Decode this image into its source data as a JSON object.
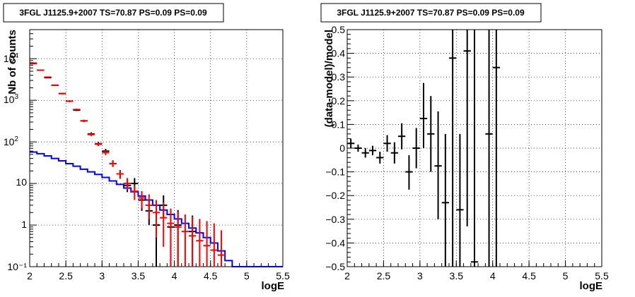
{
  "chart_data": [
    {
      "type": "line",
      "title": "3FGL J1125.9+2007 TS=70.87 PS=0.09 PS=0.09",
      "xlabel": "logE",
      "ylabel": "Nb of counts",
      "xlim": [
        2,
        5.5
      ],
      "ylim": [
        0.1,
        50000
      ],
      "yscale": "log",
      "grid": true,
      "x_ticks": [
        "2",
        "2.5",
        "3",
        "3.5",
        "4",
        "4.5",
        "5",
        "5.5"
      ],
      "y_ticks": [
        "10",
        "1",
        "10⁻¹"
      ],
      "y_ticks_pow": [
        "10",
        "10",
        "10",
        "10"
      ],
      "y_ticks_exp": [
        "1",
        "2",
        "3",
        "4"
      ],
      "colors": {
        "data": "#000000",
        "model_total": "#ff0000",
        "model_source": "#0000ff"
      },
      "series": [
        {
          "style": "points",
          "color": "#000000",
          "points": [
            {
              "x": 2.05,
              "y": 7800,
              "lo": 7600,
              "hi": 8000
            },
            {
              "x": 2.15,
              "y": 5300,
              "lo": 5150,
              "hi": 5450
            },
            {
              "x": 2.25,
              "y": 3500,
              "lo": 3400,
              "hi": 3600
            },
            {
              "x": 2.35,
              "y": 2300,
              "lo": 2220,
              "hi": 2380
            },
            {
              "x": 2.45,
              "y": 1450,
              "lo": 1390,
              "hi": 1510
            },
            {
              "x": 2.55,
              "y": 950,
              "lo": 905,
              "hi": 995
            },
            {
              "x": 2.65,
              "y": 580,
              "lo": 550,
              "hi": 610
            },
            {
              "x": 2.75,
              "y": 320,
              "lo": 300,
              "hi": 340
            },
            {
              "x": 2.85,
              "y": 155,
              "lo": 140,
              "hi": 170
            },
            {
              "x": 2.95,
              "y": 90,
              "lo": 81,
              "hi": 100
            },
            {
              "x": 3.05,
              "y": 60,
              "lo": 52,
              "hi": 68
            },
            {
              "x": 3.15,
              "y": 30,
              "lo": 25,
              "hi": 36
            },
            {
              "x": 3.25,
              "y": 17,
              "lo": 13,
              "hi": 21
            },
            {
              "x": 3.35,
              "y": 9,
              "lo": 6.2,
              "hi": 12.5
            },
            {
              "x": 3.45,
              "y": 10,
              "lo": 7,
              "hi": 13.5
            },
            {
              "x": 3.55,
              "y": 4,
              "lo": 2.2,
              "hi": 6.5
            },
            {
              "x": 3.65,
              "y": 2.2,
              "lo": 1,
              "hi": 4
            },
            {
              "x": 3.75,
              "y": 1,
              "lo": 0.1,
              "hi": 2.4
            },
            {
              "x": 3.85,
              "y": 3,
              "lo": 1.5,
              "hi": 5.2
            },
            {
              "x": 3.95,
              "y": 0.9,
              "lo": 0.1,
              "hi": 2.2
            },
            {
              "x": 4.05,
              "y": 1,
              "lo": 0.1,
              "hi": 2.3
            },
            {
              "x": 4.25,
              "y": 0.7,
              "lo": 0.1,
              "hi": 1.7
            }
          ]
        },
        {
          "style": "points",
          "color": "#ff0000",
          "points": [
            {
              "x": 2.05,
              "y": 7600,
              "lo": 7400,
              "hi": 7800
            },
            {
              "x": 2.15,
              "y": 5300,
              "lo": 5150,
              "hi": 5450
            },
            {
              "x": 2.25,
              "y": 3600,
              "lo": 3500,
              "hi": 3700
            },
            {
              "x": 2.35,
              "y": 2300,
              "lo": 2220,
              "hi": 2380
            },
            {
              "x": 2.45,
              "y": 1450,
              "lo": 1390,
              "hi": 1510
            },
            {
              "x": 2.55,
              "y": 950,
              "lo": 905,
              "hi": 995
            },
            {
              "x": 2.65,
              "y": 600,
              "lo": 570,
              "hi": 630
            },
            {
              "x": 2.75,
              "y": 320,
              "lo": 300,
              "hi": 340
            },
            {
              "x": 2.85,
              "y": 150,
              "lo": 138,
              "hi": 163
            },
            {
              "x": 2.95,
              "y": 88,
              "lo": 79,
              "hi": 97
            },
            {
              "x": 3.05,
              "y": 55,
              "lo": 48,
              "hi": 62
            },
            {
              "x": 3.15,
              "y": 30,
              "lo": 25,
              "hi": 36
            },
            {
              "x": 3.25,
              "y": 17,
              "lo": 13,
              "hi": 21
            },
            {
              "x": 3.35,
              "y": 10,
              "lo": 6.9,
              "hi": 13.5
            },
            {
              "x": 3.45,
              "y": 6.5,
              "lo": 4,
              "hi": 9
            },
            {
              "x": 3.55,
              "y": 4.5,
              "lo": 2.5,
              "hi": 6.5
            },
            {
              "x": 3.65,
              "y": 3,
              "lo": 1.4,
              "hi": 5.5
            },
            {
              "x": 3.75,
              "y": 2,
              "lo": 0.5,
              "hi": 4
            },
            {
              "x": 3.85,
              "y": 1.5,
              "lo": 0.3,
              "hi": 3.5
            },
            {
              "x": 3.95,
              "y": 1.1,
              "lo": 0.1,
              "hi": 2.5
            },
            {
              "x": 4.05,
              "y": 0.9,
              "lo": 0.1,
              "hi": 2.1
            },
            {
              "x": 4.15,
              "y": 0.7,
              "lo": 0.1,
              "hi": 1.8
            },
            {
              "x": 4.25,
              "y": 0.55,
              "lo": 0.1,
              "hi": 1.6
            },
            {
              "x": 4.35,
              "y": 0.42,
              "lo": 0.1,
              "hi": 1.4
            },
            {
              "x": 4.45,
              "y": 0.32,
              "lo": 0.1,
              "hi": 1.25
            },
            {
              "x": 4.55,
              "y": 0.25,
              "lo": 0.1,
              "hi": 1.1
            },
            {
              "x": 4.65,
              "y": 0.19,
              "lo": 0.1,
              "hi": 0.75
            }
          ]
        },
        {
          "style": "step",
          "color": "#0000ff",
          "edges": [
            2.0,
            2.1,
            2.2,
            2.3,
            2.4,
            2.5,
            2.6,
            2.7,
            2.8,
            2.9,
            3.0,
            3.1,
            3.2,
            3.3,
            3.4,
            3.5,
            3.6,
            3.7,
            3.8,
            3.9,
            4.0,
            4.1,
            4.2,
            4.3,
            4.4,
            4.5,
            4.6,
            4.7,
            4.8,
            4.9,
            5.0,
            5.1,
            5.2,
            5.3,
            5.4,
            5.5
          ],
          "values": [
            57,
            52,
            46,
            40,
            35,
            30,
            26,
            22,
            19,
            16.5,
            14,
            11.5,
            9.5,
            7.8,
            6.3,
            5,
            4,
            3,
            2.3,
            1.8,
            1.4,
            1.1,
            0.85,
            0.65,
            0.5,
            0.37,
            0.24,
            0.14,
            0.1,
            0.1,
            0.1,
            0.1,
            0.1,
            0.1,
            0.1
          ]
        }
      ]
    },
    {
      "type": "scatter",
      "title": "3FGL J1125.9+2007 TS=70.87 PS=0.09 PS=0.09",
      "xlabel": "logE",
      "ylabel": "(data-model)/model",
      "xlim": [
        2,
        5.5
      ],
      "ylim": [
        -0.5,
        0.5
      ],
      "grid": true,
      "x_ticks": [
        "2",
        "2.5",
        "3",
        "3.5",
        "4",
        "4.5",
        "5",
        "5.5"
      ],
      "y_ticks": [
        "−0.5",
        "−0.4",
        "−0.3",
        "−0.2",
        "−0.1",
        "0",
        "0.1",
        "0.2",
        "0.3",
        "0.4",
        "0.5"
      ],
      "series": [
        {
          "style": "points",
          "color": "#000000",
          "points": [
            {
              "x": 2.05,
              "y": 0.02,
              "lo": 0.0,
              "hi": 0.04
            },
            {
              "x": 2.15,
              "y": 0.0,
              "lo": -0.015,
              "hi": 0.015
            },
            {
              "x": 2.25,
              "y": -0.02,
              "lo": -0.04,
              "hi": 0.0
            },
            {
              "x": 2.35,
              "y": -0.01,
              "lo": -0.03,
              "hi": 0.01
            },
            {
              "x": 2.45,
              "y": -0.04,
              "lo": -0.065,
              "hi": -0.015
            },
            {
              "x": 2.55,
              "y": 0.02,
              "lo": -0.015,
              "hi": 0.055
            },
            {
              "x": 2.65,
              "y": -0.02,
              "lo": -0.065,
              "hi": 0.025
            },
            {
              "x": 2.75,
              "y": 0.05,
              "lo": -0.005,
              "hi": 0.105
            },
            {
              "x": 2.85,
              "y": -0.1,
              "lo": -0.175,
              "hi": -0.03
            },
            {
              "x": 2.95,
              "y": 0.0,
              "lo": -0.085,
              "hi": 0.085
            },
            {
              "x": 3.05,
              "y": 0.125,
              "lo": 0.0,
              "hi": 0.275
            },
            {
              "x": 3.15,
              "y": 0.06,
              "lo": -0.1,
              "hi": 0.22
            },
            {
              "x": 3.25,
              "y": -0.075,
              "lo": -0.3,
              "hi": 0.155
            },
            {
              "x": 3.35,
              "y": -0.23,
              "lo": -0.5,
              "hi": 0.06
            },
            {
              "x": 3.45,
              "y": 0.38,
              "lo": -0.5,
              "hi": 0.5
            },
            {
              "x": 3.55,
              "y": -0.26,
              "lo": -0.5,
              "hi": 0.06
            },
            {
              "x": 3.65,
              "y": 0.41,
              "lo": -0.33,
              "hi": 0.5
            },
            {
              "x": 3.75,
              "y": -0.48,
              "lo": -0.5,
              "hi": 0.5
            },
            {
              "x": 3.95,
              "y": 0.06,
              "lo": -0.5,
              "hi": 0.5
            },
            {
              "x": 4.05,
              "y": 0.34,
              "lo": -0.5,
              "hi": 0.5
            }
          ]
        }
      ]
    }
  ]
}
